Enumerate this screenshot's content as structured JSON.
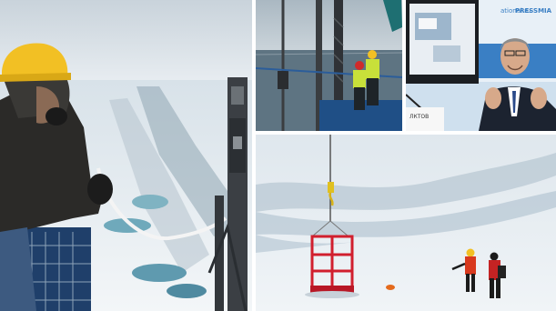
{
  "collage": {
    "photos": [
      {
        "subject": "researcher-on-ship-deck"
      },
      {
        "subject": "crew-at-ship-rail"
      },
      {
        "subject": "speaker-at-press-conference"
      },
      {
        "subject": "crane-cage-on-ice-floe"
      }
    ],
    "press_screen_text": {
      "domain": "ational.ru",
      "logo": "PRESSMIA",
      "nameplate": "ЛКТОВ"
    },
    "colors": {
      "sky": "#e6edf2",
      "ice": "#f1f5f8",
      "water": "#6f9cad",
      "helmet": "#f2c024",
      "cage": "#d11f2e",
      "hivis": "#c8e03a",
      "backdrop_blue": "#3a7fc4"
    }
  }
}
